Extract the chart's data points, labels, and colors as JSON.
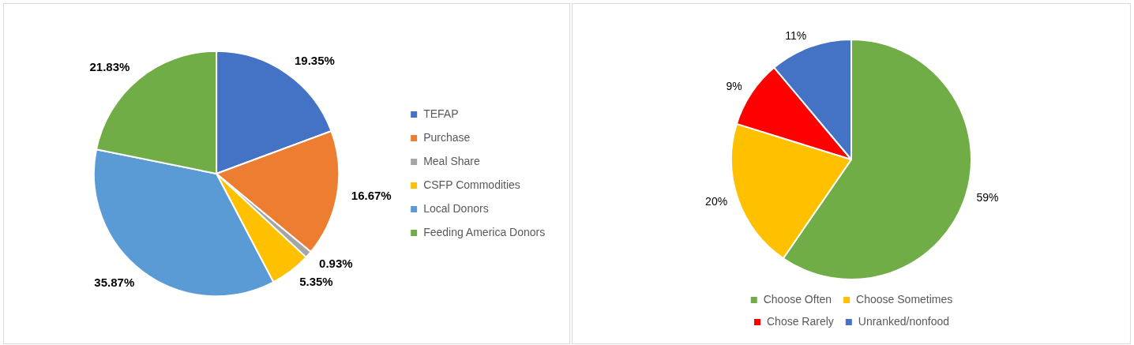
{
  "chart_data": [
    {
      "type": "pie",
      "categories": [
        "TEFAP",
        "Purchase",
        "Meal Share",
        "CSFP Commodities",
        "Local Donors",
        "Feeding America Donors"
      ],
      "values": [
        19.35,
        16.67,
        0.93,
        5.35,
        35.87,
        21.83
      ],
      "value_labels": [
        "19.35%",
        "16.67%",
        "0.93%",
        "5.35%",
        "35.87%",
        "21.83%"
      ],
      "colors": [
        "#4472c4",
        "#ed7d31",
        "#a5a5a5",
        "#ffc000",
        "#5b9bd5",
        "#70ad47"
      ],
      "legend": "right"
    },
    {
      "type": "pie",
      "categories": [
        "Choose Often",
        "Choose Sometimes",
        "Chose Rarely",
        "Unranked/nonfood"
      ],
      "values": [
        59,
        20,
        9,
        11
      ],
      "value_labels": [
        "59%",
        "20%",
        "9%",
        "11%"
      ],
      "colors": [
        "#70ad47",
        "#ffc000",
        "#ff0000",
        "#4472c4"
      ],
      "legend": "bottom"
    }
  ]
}
